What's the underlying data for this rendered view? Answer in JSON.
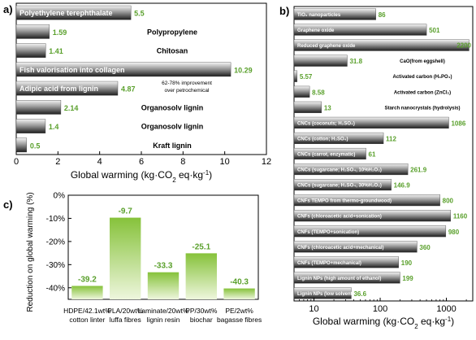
{
  "chart_data": [
    {
      "panel": "a)",
      "type": "bar",
      "orientation": "horizontal",
      "xlabel_parts": [
        "Global warming (kg·CO",
        "2",
        " eq·kg",
        "-1",
        ")"
      ],
      "xlim": [
        0,
        12
      ],
      "xticks": [
        "0",
        "2",
        "4",
        "6",
        "8",
        "10",
        "12"
      ],
      "annotation": [
        "62-78% improvement",
        "over petrochemical"
      ],
      "bars": [
        {
          "label": "Polyethylene terephthalate",
          "value": 5.5,
          "value_label": "5.5",
          "label_inside": true
        },
        {
          "label": "Polypropylene",
          "value": 1.59,
          "value_label": "1.59",
          "label_inside": false
        },
        {
          "label": "Chitosan",
          "value": 1.41,
          "value_label": "1.41",
          "label_inside": false
        },
        {
          "label": "Fish valorisation into collagen",
          "value": 10.29,
          "value_label": "10.29",
          "label_inside": true
        },
        {
          "label": "Adipic acid from lignin",
          "value": 4.87,
          "value_label": "4.87",
          "label_inside": true
        },
        {
          "label": "Organosolv lignin",
          "value": 2.14,
          "value_label": "2.14",
          "label_inside": false
        },
        {
          "label": "Organosolv lignin",
          "value": 1.4,
          "value_label": "1.4",
          "label_inside": false
        },
        {
          "label": "Kraft lignin",
          "value": 0.5,
          "value_label": "0.5",
          "label_inside": false
        }
      ]
    },
    {
      "panel": "b)",
      "type": "bar",
      "orientation": "horizontal",
      "x_scale": "log",
      "xlim": [
        5,
        2500
      ],
      "xticks": [
        {
          "v": 10,
          "t": "10"
        },
        {
          "v": 100,
          "t": "100"
        },
        {
          "v": 1000,
          "t": "1000"
        }
      ],
      "xlabel_parts": [
        "Global warming (kg·CO",
        "2",
        " eq·kg",
        "-1",
        ")"
      ],
      "bars": [
        {
          "label": "TiO₂ nanoparticles",
          "value": 86,
          "value_label": "86",
          "label_inside": true
        },
        {
          "label": "Graphene oxide",
          "value": 501,
          "value_label": "501",
          "label_inside": true
        },
        {
          "label": "Reduced graphene oxide",
          "value": 2200,
          "value_label": "2200",
          "label_inside": true
        },
        {
          "label": "CaO(from eggshell)",
          "value": 31.8,
          "value_label": "31.8",
          "label_inside": false
        },
        {
          "label": "Activated carbon (H₃PO₄)",
          "value": 5.57,
          "value_label": "5.57",
          "label_inside": false
        },
        {
          "label": "Activated carbon (ZnCl₂)",
          "value": 8.58,
          "value_label": "8.58",
          "label_inside": false
        },
        {
          "label": "Starch nanocrystals (hydrolysis)",
          "value": 13,
          "value_label": "13",
          "label_inside": false
        },
        {
          "label": "CNCs (coconuts; H₂SO₄)",
          "value": 1086,
          "value_label": "1086",
          "label_inside": true
        },
        {
          "label": "CNCs (cotton; H₂SO₄)",
          "value": 112,
          "value_label": "112",
          "label_inside": true
        },
        {
          "label": "CNCs (carrot, enzymatic)",
          "value": 61,
          "value_label": "61",
          "label_inside": true
        },
        {
          "label": "CNCs (sugarcane; H₂SO₄, 10%H₂O₂)",
          "value": 261.9,
          "value_label": "261.9",
          "label_inside": true
        },
        {
          "label": "CNCs (sugarcane; H₂SO₄, 30%H₂O₂)",
          "value": 146.9,
          "value_label": "146.9",
          "label_inside": true
        },
        {
          "label": "CNFs TEMPO from thermo-groundwood)",
          "value": 800,
          "value_label": "800",
          "label_inside": true
        },
        {
          "label": "CNFs (chloroacetic acid+sonication)",
          "value": 1160,
          "value_label": "1160",
          "label_inside": true
        },
        {
          "label": "CNFs (TEMPO+sonication)",
          "value": 980,
          "value_label": "980",
          "label_inside": true
        },
        {
          "label": "CNFs (chloroacetic acid+mechanical)",
          "value": 360,
          "value_label": "360",
          "label_inside": true
        },
        {
          "label": "CNFs (TEMPO+mechanical)",
          "value": 190,
          "value_label": "190",
          "label_inside": true
        },
        {
          "label": "Lignin NPs (high amount of ethanol)",
          "value": 199,
          "value_label": "199",
          "label_inside": true
        },
        {
          "label": "Lignin NPs (low solvent)",
          "value": 36.6,
          "value_label": "36.6",
          "label_inside": true
        }
      ]
    },
    {
      "panel": "c)",
      "type": "bar",
      "orientation": "vertical",
      "ylabel": "Reduction on global warming (%)",
      "ylim": [
        0,
        -45
      ],
      "yticks": [
        {
          "v": 0,
          "t": "0%"
        },
        {
          "v": -10,
          "t": "-10%"
        },
        {
          "v": -20,
          "t": "-20%"
        },
        {
          "v": -30,
          "t": "-30%"
        },
        {
          "v": -40,
          "t": "-40%"
        }
      ],
      "bars": [
        {
          "label": [
            "HDPE/42.1wt%",
            "cotton linter"
          ],
          "value": -39.2,
          "value_label": "-39.2"
        },
        {
          "label": [
            "PLA/20wt%",
            "luffa fibres"
          ],
          "value": -9.7,
          "value_label": "-9.7"
        },
        {
          "label": [
            "Laminate/20wt%",
            "lignin resin"
          ],
          "value": -33.3,
          "value_label": "-33.3"
        },
        {
          "label": [
            "PP/30wt%",
            "biochar"
          ],
          "value": -25.1,
          "value_label": "-25.1"
        },
        {
          "label": [
            "PE/2wt%",
            "bagasse fibres"
          ],
          "value": -40.3,
          "value_label": "-40.3"
        }
      ]
    }
  ],
  "colors": {
    "bar_dark": "#333333",
    "bar_light": "#d9d9d9",
    "value_green": "#5aa02c",
    "green_top": "#8cc63f",
    "green_bottom": "#eef6dd"
  }
}
